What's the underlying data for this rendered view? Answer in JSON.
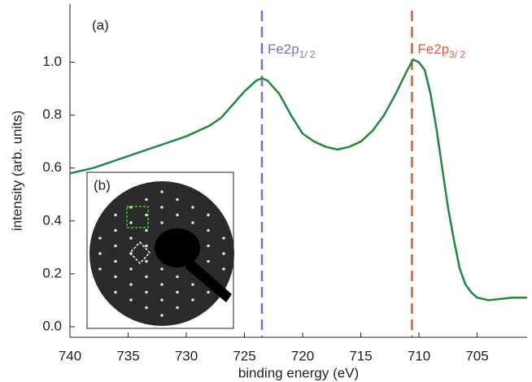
{
  "chart_data": {
    "type": "line",
    "xlabel": "binding energy (eV)",
    "ylabel": "intensity (arb. units)",
    "xlim": [
      740,
      700.7
    ],
    "ylim": [
      -0.04,
      1.22
    ],
    "xticks": [
      740,
      735,
      730,
      725,
      720,
      715,
      710,
      705
    ],
    "yticks": [
      {
        "value": 0,
        "label": "0.0"
      },
      0.2,
      0.4,
      0.6,
      0.8,
      {
        "value": 1,
        "label": "1.0"
      }
    ],
    "series": [
      {
        "color": "#1f8a3c",
        "x": [
          740,
          738,
          736,
          734,
          732,
          730,
          728,
          727,
          726,
          725,
          724,
          723.5,
          723,
          722,
          721,
          720,
          719,
          718,
          717,
          716,
          715,
          714,
          713,
          712,
          711,
          710.5,
          710,
          709.5,
          709,
          708.5,
          708,
          707.5,
          707,
          706.5,
          706,
          705.5,
          705,
          704,
          702,
          700.7
        ],
        "values": [
          0.58,
          0.6,
          0.63,
          0.66,
          0.69,
          0.72,
          0.76,
          0.79,
          0.84,
          0.89,
          0.93,
          0.94,
          0.93,
          0.88,
          0.8,
          0.73,
          0.7,
          0.68,
          0.67,
          0.68,
          0.7,
          0.74,
          0.8,
          0.88,
          0.97,
          1.01,
          1.0,
          0.97,
          0.88,
          0.75,
          0.6,
          0.45,
          0.33,
          0.22,
          0.16,
          0.13,
          0.11,
          0.1,
          0.11,
          0.11
        ]
      }
    ],
    "vlines": [
      {
        "x": 723.5,
        "color": "#7b6fbf",
        "label": "Fe2p",
        "sub": "1/ 2"
      },
      {
        "x": 710.6,
        "color": "#e8553a",
        "label": "Fe2p",
        "sub": "3/ 2"
      }
    ],
    "annotations": [
      "(a)",
      "(b)"
    ]
  }
}
